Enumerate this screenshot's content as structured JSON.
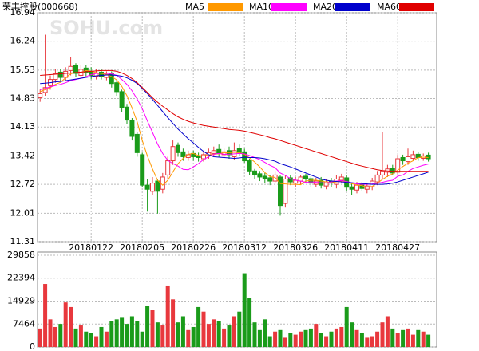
{
  "chart_data": [
    {
      "type": "candlestick",
      "title": "荣丰控股(000668)",
      "watermark": "SOHU.com",
      "categories": [
        null,
        null,
        null,
        null,
        null,
        null,
        null,
        null,
        null,
        null,
        "20180122",
        null,
        null,
        null,
        null,
        null,
        null,
        null,
        null,
        null,
        "20180205",
        null,
        null,
        null,
        null,
        null,
        null,
        null,
        null,
        null,
        "20180226",
        null,
        null,
        null,
        null,
        null,
        null,
        null,
        null,
        null,
        "20180312",
        null,
        null,
        null,
        null,
        null,
        null,
        null,
        null,
        null,
        "20180326",
        null,
        null,
        null,
        null,
        null,
        null,
        null,
        null,
        null,
        "20180411",
        null,
        null,
        null,
        null,
        null,
        null,
        null,
        null,
        null,
        "20180427",
        null,
        null,
        null,
        null,
        null,
        null
      ],
      "open": [
        14.85,
        14.98,
        15.15,
        15.3,
        15.48,
        15.35,
        15.52,
        15.65,
        15.4,
        15.58,
        15.5,
        15.38,
        15.48,
        15.35,
        15.45,
        15.22,
        15.0,
        14.62,
        14.3,
        13.95,
        13.45,
        12.7,
        12.55,
        12.8,
        12.6,
        12.95,
        13.3,
        13.68,
        13.52,
        13.38,
        13.48,
        13.42,
        13.35,
        13.42,
        13.48,
        13.58,
        13.45,
        13.55,
        13.4,
        13.6,
        13.52,
        13.3,
        13.05,
        12.98,
        12.92,
        12.88,
        12.8,
        12.9,
        12.25,
        12.88,
        12.75,
        12.8,
        12.92,
        12.86,
        12.72,
        12.82,
        12.68,
        12.8,
        12.72,
        12.82,
        12.88,
        12.66,
        12.58,
        12.72,
        12.6,
        12.66,
        12.78,
        12.95,
        13.02,
        13.12,
        13.02,
        13.38,
        13.28,
        13.36,
        13.46,
        13.36,
        13.44
      ],
      "high": [
        15.05,
        16.4,
        15.4,
        15.55,
        15.55,
        15.6,
        15.85,
        15.7,
        15.65,
        15.65,
        15.6,
        15.55,
        15.55,
        15.5,
        15.5,
        15.3,
        15.05,
        14.7,
        14.35,
        14.0,
        13.5,
        12.85,
        12.9,
        12.85,
        13.0,
        13.4,
        13.8,
        13.75,
        13.6,
        13.55,
        13.55,
        13.5,
        13.55,
        13.6,
        13.65,
        13.7,
        13.6,
        13.65,
        13.75,
        13.7,
        13.6,
        13.35,
        13.1,
        13.05,
        13.0,
        12.95,
        13.05,
        12.95,
        12.95,
        12.95,
        12.9,
        12.95,
        12.98,
        12.92,
        12.88,
        12.9,
        12.85,
        12.88,
        12.95,
        12.98,
        12.95,
        12.75,
        12.78,
        12.78,
        12.75,
        12.88,
        13.05,
        14.0,
        13.2,
        13.2,
        13.45,
        13.45,
        13.6,
        13.55,
        13.52,
        13.48,
        13.5
      ],
      "low": [
        14.75,
        14.9,
        15.05,
        15.22,
        15.25,
        15.28,
        15.4,
        15.35,
        15.32,
        15.38,
        15.3,
        15.3,
        15.3,
        15.28,
        15.1,
        14.9,
        14.5,
        14.2,
        13.8,
        13.4,
        12.65,
        12.05,
        12.45,
        12.0,
        12.5,
        12.85,
        13.2,
        13.4,
        13.3,
        13.3,
        13.3,
        13.28,
        13.28,
        13.35,
        13.4,
        13.4,
        13.38,
        13.35,
        13.32,
        13.42,
        13.25,
        12.95,
        12.85,
        12.8,
        12.75,
        12.7,
        12.75,
        11.95,
        12.15,
        12.7,
        12.65,
        12.72,
        12.78,
        12.65,
        12.65,
        12.62,
        12.6,
        12.65,
        12.62,
        12.75,
        12.55,
        12.45,
        12.5,
        12.55,
        12.5,
        12.58,
        12.7,
        12.85,
        12.9,
        12.95,
        12.95,
        13.2,
        13.2,
        13.3,
        13.3,
        13.3,
        13.28
      ],
      "close": [
        14.95,
        15.1,
        15.3,
        15.45,
        15.35,
        15.5,
        15.62,
        15.45,
        15.55,
        15.48,
        15.4,
        15.45,
        15.38,
        15.42,
        15.2,
        15.0,
        14.6,
        14.3,
        13.9,
        13.5,
        12.7,
        12.6,
        12.75,
        12.55,
        12.9,
        13.3,
        13.65,
        13.5,
        13.4,
        13.45,
        13.4,
        13.38,
        13.45,
        13.5,
        13.55,
        13.48,
        13.52,
        13.45,
        13.55,
        13.5,
        13.3,
        13.05,
        12.95,
        12.9,
        12.85,
        12.8,
        12.95,
        12.2,
        12.85,
        12.78,
        12.82,
        12.9,
        12.85,
        12.75,
        12.8,
        12.7,
        12.78,
        12.75,
        12.85,
        12.9,
        12.65,
        12.6,
        12.7,
        12.62,
        12.68,
        12.8,
        12.95,
        13.05,
        13.1,
        13.0,
        13.35,
        13.3,
        13.4,
        13.45,
        13.38,
        13.42,
        13.35
      ],
      "up_color": "#e8383d",
      "down_color": "#1a9b1a",
      "series": [
        {
          "name": "MA5",
          "color": "#ff9900",
          "values": [
            15.0,
            15.05,
            15.1,
            15.18,
            15.23,
            15.34,
            15.44,
            15.47,
            15.47,
            15.52,
            15.5,
            15.47,
            15.45,
            15.43,
            15.37,
            15.29,
            15.13,
            14.9,
            14.6,
            14.26,
            13.8,
            13.42,
            13.1,
            12.82,
            12.7,
            12.82,
            13.03,
            13.23,
            13.36,
            13.46,
            13.48,
            13.43,
            13.42,
            13.44,
            13.46,
            13.47,
            13.5,
            13.5,
            13.51,
            13.5,
            13.46,
            13.37,
            13.27,
            13.15,
            13.01,
            12.91,
            12.89,
            12.74,
            12.73,
            12.72,
            12.72,
            12.71,
            12.8,
            12.82,
            12.82,
            12.8,
            12.78,
            12.76,
            12.78,
            12.8,
            12.78,
            12.74,
            12.7,
            12.69,
            12.65,
            12.67,
            12.75,
            12.84,
            12.92,
            12.98,
            13.07,
            13.16,
            13.24,
            13.3,
            13.38,
            13.39,
            13.38
          ]
        },
        {
          "name": "MA10",
          "color": "#ff00ff",
          "values": [
            15.05,
            15.08,
            15.12,
            15.15,
            15.18,
            15.22,
            15.27,
            15.3,
            15.33,
            15.37,
            15.42,
            15.45,
            15.46,
            15.45,
            15.44,
            15.4,
            15.3,
            15.18,
            15.02,
            14.82,
            14.58,
            14.28,
            14.0,
            13.71,
            13.48,
            13.31,
            13.23,
            13.17,
            13.09,
            13.08,
            13.15,
            13.23,
            13.33,
            13.4,
            13.46,
            13.48,
            13.46,
            13.46,
            13.47,
            13.48,
            13.47,
            13.43,
            13.38,
            13.33,
            13.26,
            13.19,
            13.13,
            13.0,
            12.94,
            12.86,
            12.82,
            12.8,
            12.77,
            12.78,
            12.77,
            12.76,
            12.75,
            12.78,
            12.8,
            12.81,
            12.79,
            12.76,
            12.73,
            12.72,
            12.72,
            12.73,
            12.75,
            12.77,
            12.8,
            12.82,
            12.92,
            12.95,
            13.04,
            13.11,
            13.15,
            13.19,
            13.22
          ]
        },
        {
          "name": "MA20",
          "color": "#0000cc",
          "values": [
            15.2,
            15.21,
            15.22,
            15.24,
            15.25,
            15.27,
            15.29,
            15.31,
            15.33,
            15.35,
            15.37,
            15.39,
            15.4,
            15.41,
            15.41,
            15.4,
            15.38,
            15.34,
            15.28,
            15.2,
            15.08,
            14.95,
            14.81,
            14.66,
            14.51,
            14.36,
            14.22,
            14.08,
            13.96,
            13.84,
            13.74,
            13.63,
            13.53,
            13.45,
            13.4,
            13.39,
            13.38,
            13.37,
            13.36,
            13.37,
            13.39,
            13.38,
            13.38,
            13.37,
            13.35,
            13.32,
            13.29,
            13.23,
            13.19,
            13.15,
            13.1,
            13.05,
            13.0,
            12.95,
            12.9,
            12.85,
            12.82,
            12.8,
            12.79,
            12.78,
            12.77,
            12.76,
            12.75,
            12.74,
            12.73,
            12.72,
            12.72,
            12.72,
            12.73,
            12.75,
            12.78,
            12.82,
            12.86,
            12.9,
            12.94,
            12.98,
            13.02
          ]
        },
        {
          "name": "MA60",
          "color": "#e00000",
          "values": [
            15.4,
            15.41,
            15.42,
            15.43,
            15.44,
            15.45,
            15.46,
            15.47,
            15.48,
            15.49,
            15.5,
            15.51,
            15.52,
            15.52,
            15.52,
            15.5,
            15.46,
            15.4,
            15.32,
            15.22,
            15.1,
            14.98,
            14.85,
            14.74,
            14.64,
            14.55,
            14.46,
            14.38,
            14.32,
            14.27,
            14.23,
            14.2,
            14.17,
            14.15,
            14.13,
            14.11,
            14.09,
            14.07,
            14.06,
            14.05,
            14.03,
            14.0,
            13.97,
            13.94,
            13.91,
            13.87,
            13.84,
            13.8,
            13.76,
            13.72,
            13.68,
            13.64,
            13.6,
            13.56,
            13.52,
            13.48,
            13.44,
            13.4,
            13.36,
            13.32,
            13.28,
            13.24,
            13.2,
            13.17,
            13.14,
            13.11,
            13.08,
            13.06,
            13.05,
            13.04,
            13.04,
            13.04,
            13.04,
            13.04,
            13.04,
            13.04,
            13.04
          ]
        }
      ],
      "ylim": [
        11.31,
        16.94
      ],
      "yticks": [
        16.94,
        16.24,
        15.53,
        14.83,
        14.13,
        13.42,
        12.72,
        12.01,
        11.31
      ],
      "grid": true
    },
    {
      "type": "bar",
      "values": [
        6000,
        20500,
        9000,
        6500,
        7500,
        14500,
        13000,
        6000,
        7000,
        5000,
        4500,
        3500,
        6500,
        5000,
        8500,
        9000,
        9500,
        7500,
        10000,
        8500,
        5000,
        13500,
        12000,
        8000,
        7000,
        20000,
        15500,
        8000,
        10000,
        5500,
        6500,
        13000,
        11500,
        7500,
        9000,
        8500,
        6000,
        7000,
        10000,
        11500,
        24000,
        16000,
        8000,
        5500,
        9000,
        3500,
        5000,
        5500,
        3000,
        4500,
        4000,
        5000,
        5500,
        6000,
        7500,
        4500,
        3500,
        5000,
        6000,
        6500,
        13000,
        8000,
        5500,
        4500,
        3000,
        3500,
        5000,
        8000,
        10000,
        6000,
        4500,
        5500,
        6000,
        4000,
        5500,
        5000,
        4000
      ],
      "ylim": [
        0,
        29858
      ],
      "yticks": [
        29858,
        22394,
        14929,
        7464,
        0
      ],
      "grid": true
    }
  ]
}
